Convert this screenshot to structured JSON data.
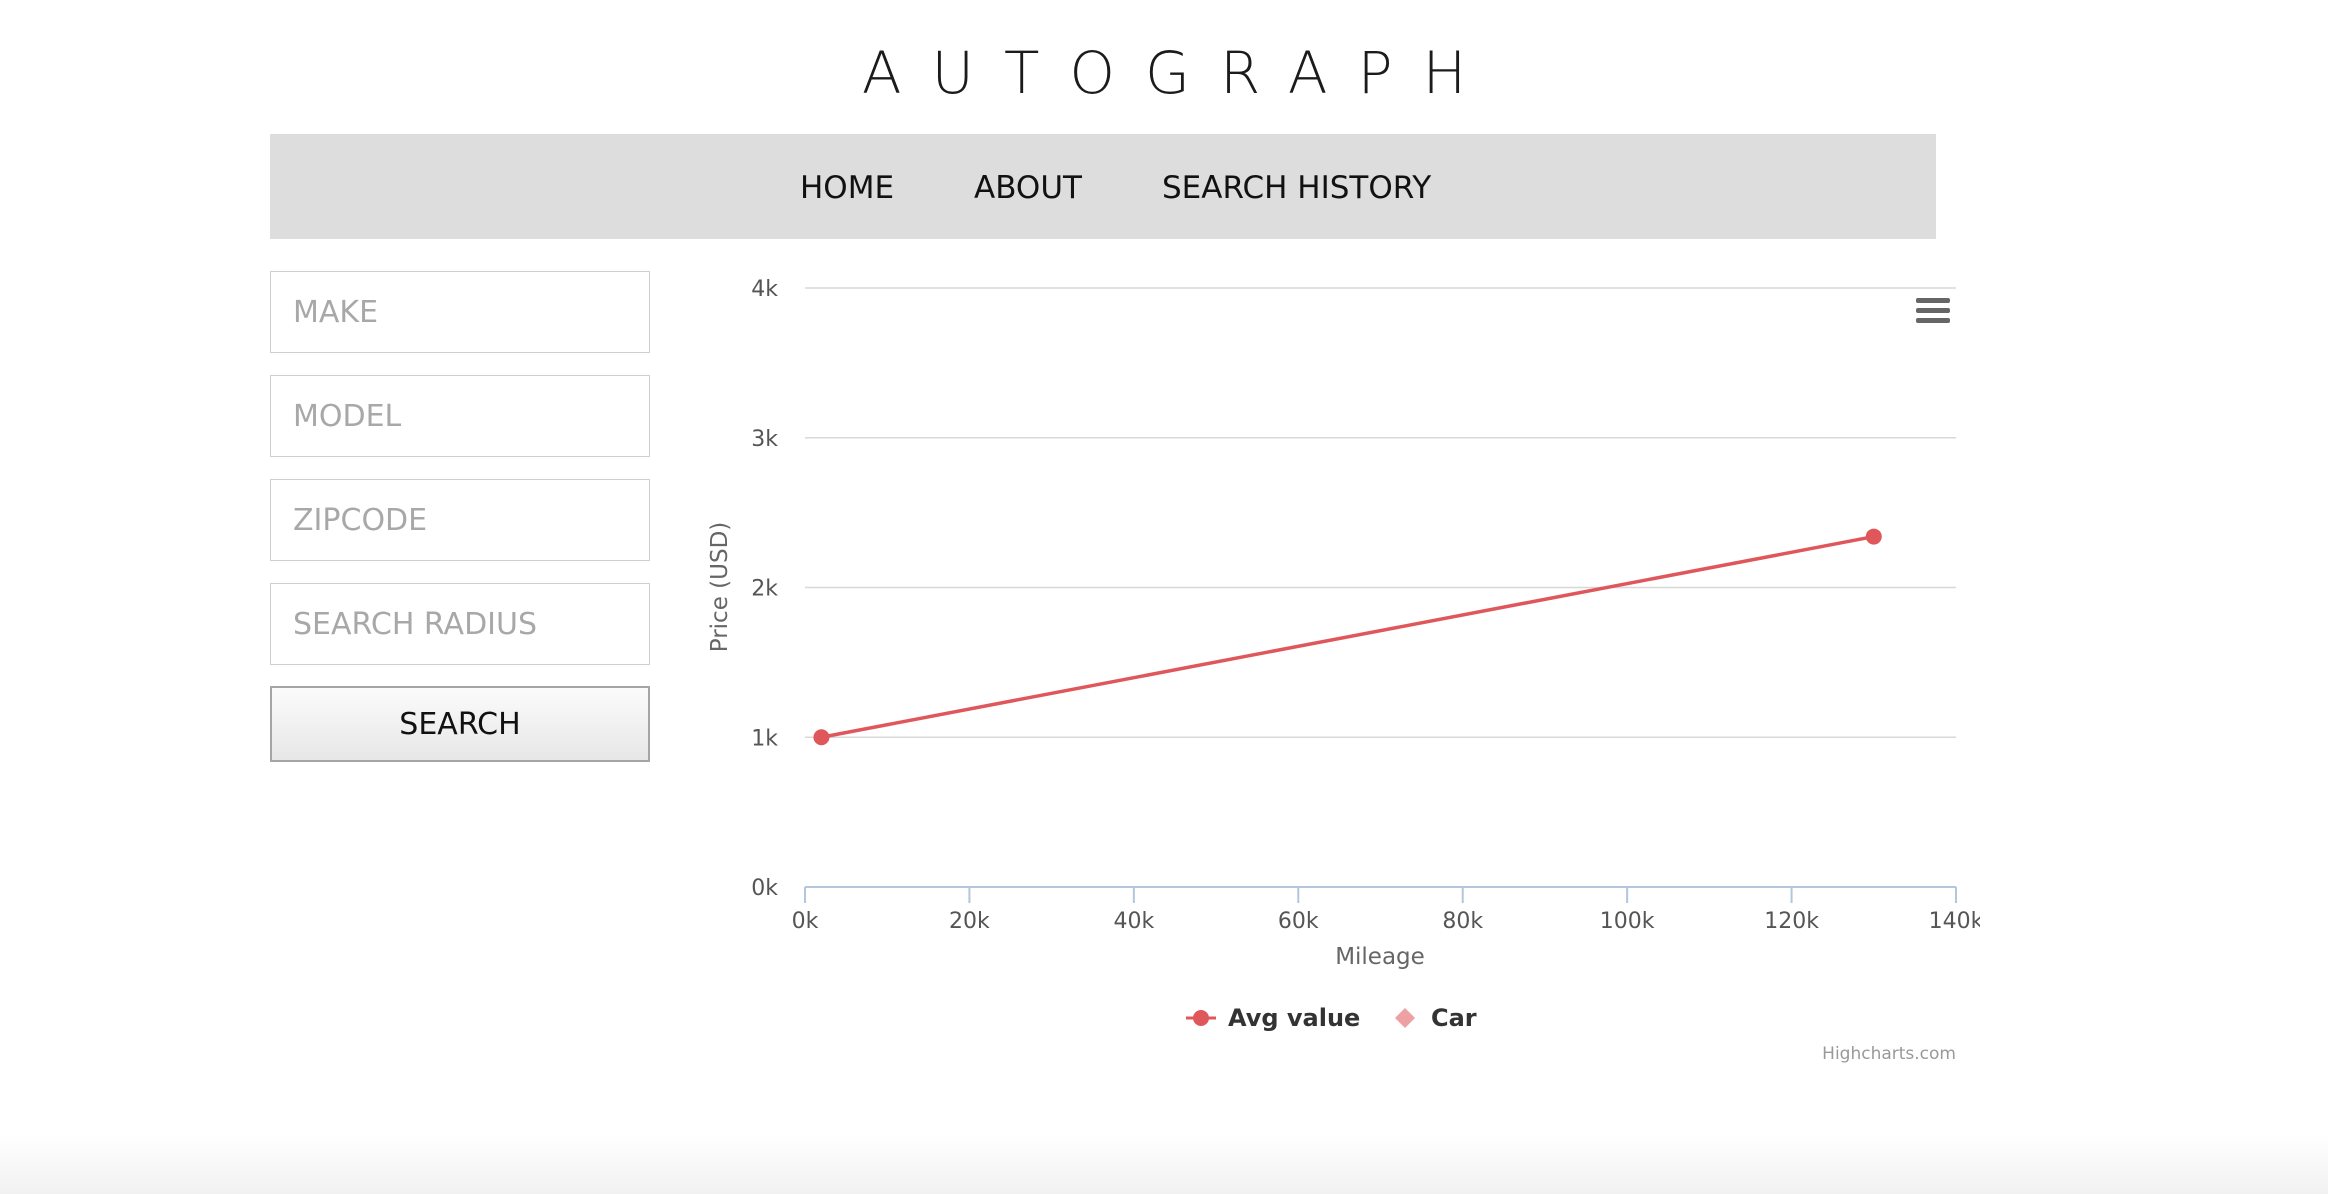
{
  "brand": "AUTOGRAPH",
  "nav": {
    "items": [
      {
        "label": "HOME"
      },
      {
        "label": "ABOUT"
      },
      {
        "label": "SEARCH HISTORY"
      }
    ]
  },
  "form": {
    "make_placeholder": "MAKE",
    "model_placeholder": "MODEL",
    "zipcode_placeholder": "ZIPCODE",
    "radius_placeholder": "SEARCH RADIUS",
    "search_label": "SEARCH"
  },
  "chart_data": {
    "type": "line",
    "title": "",
    "xlabel": "Mileage",
    "ylabel": "Price (USD)",
    "xlim": [
      0,
      140000
    ],
    "ylim": [
      0,
      4000
    ],
    "x_ticks": [
      {
        "value": 0,
        "label": "0k"
      },
      {
        "value": 20000,
        "label": "20k"
      },
      {
        "value": 40000,
        "label": "40k"
      },
      {
        "value": 60000,
        "label": "60k"
      },
      {
        "value": 80000,
        "label": "80k"
      },
      {
        "value": 100000,
        "label": "100k"
      },
      {
        "value": 120000,
        "label": "120k"
      },
      {
        "value": 140000,
        "label": "140k"
      }
    ],
    "y_ticks": [
      {
        "value": 0,
        "label": "0k"
      },
      {
        "value": 1000,
        "label": "1k"
      },
      {
        "value": 2000,
        "label": "2k"
      },
      {
        "value": 3000,
        "label": "3k"
      },
      {
        "value": 4000,
        "label": "4k"
      }
    ],
    "grid": true,
    "legend_position": "bottom",
    "series": [
      {
        "name": "Avg value",
        "type": "line",
        "marker": "circle",
        "color": "#e0575b",
        "points": [
          {
            "x": 2000,
            "y": 1000
          },
          {
            "x": 130000,
            "y": 2340
          }
        ]
      },
      {
        "name": "Car",
        "type": "scatter",
        "marker": "diamond",
        "color": "#eda1a3",
        "points": []
      }
    ],
    "credits": "Highcharts.com"
  },
  "colors": {
    "nav_bg": "#dddddd",
    "series_line": "#e0575b",
    "series_scatter": "#eda1a3",
    "gridline": "#d8d8d8",
    "axis_line": "#b3c6dc"
  },
  "icons": {
    "chart_menu": "hamburger-menu-icon"
  }
}
